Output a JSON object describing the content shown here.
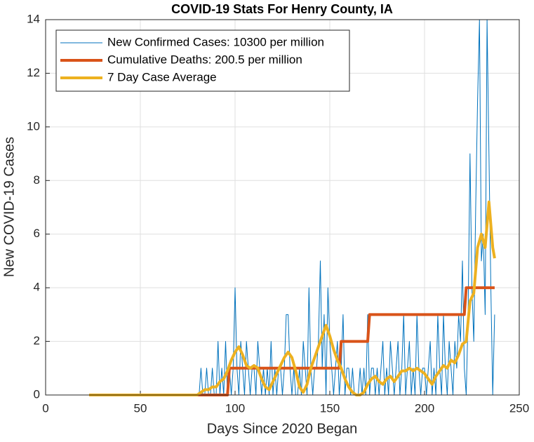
{
  "chart_data": {
    "type": "line",
    "title": "COVID-19 Stats For Henry County, IA",
    "x_label": "Days Since 2020 Began",
    "y_label": "New COVID-19 Cases",
    "xlim": [
      0,
      250
    ],
    "xticks": [
      0,
      50,
      100,
      150,
      200,
      250
    ],
    "ylim": [
      0,
      14
    ],
    "yticks": [
      0,
      2,
      4,
      6,
      8,
      10,
      12,
      14
    ],
    "grid": true,
    "legend": "upper-left",
    "series": [
      {
        "name": "New Confirmed Cases: 10300 per million",
        "color": "#0072bd",
        "width": 1,
        "x": [
          23,
          80,
          81,
          82,
          83,
          84,
          85,
          86,
          87,
          88,
          89,
          90,
          91,
          92,
          93,
          94,
          95,
          96,
          97,
          98,
          99,
          100,
          101,
          102,
          103,
          104,
          105,
          106,
          107,
          108,
          109,
          110,
          111,
          112,
          113,
          114,
          115,
          116,
          117,
          118,
          119,
          120,
          121,
          122,
          123,
          124,
          125,
          126,
          127,
          128,
          129,
          130,
          131,
          132,
          133,
          134,
          135,
          136,
          137,
          138,
          139,
          140,
          141,
          142,
          143,
          144,
          145,
          146,
          147,
          148,
          149,
          150,
          151,
          152,
          153,
          154,
          155,
          156,
          157,
          158,
          159,
          160,
          161,
          162,
          163,
          164,
          165,
          166,
          167,
          168,
          169,
          170,
          171,
          172,
          173,
          174,
          175,
          176,
          177,
          178,
          179,
          180,
          181,
          182,
          183,
          184,
          185,
          186,
          187,
          188,
          189,
          190,
          191,
          192,
          193,
          194,
          195,
          196,
          197,
          198,
          199,
          200,
          201,
          202,
          203,
          204,
          205,
          206,
          207,
          208,
          209,
          210,
          211,
          212,
          213,
          214,
          215,
          216,
          217,
          218,
          219,
          220,
          221,
          222,
          223,
          224,
          225,
          226,
          227,
          228,
          229,
          230,
          231,
          232,
          233,
          234,
          235,
          236,
          237
        ],
        "values": [
          0,
          0,
          0,
          1,
          0,
          0,
          1,
          0,
          0,
          1,
          0,
          0,
          2,
          0,
          1,
          0,
          2,
          0,
          1,
          0,
          1,
          4,
          1,
          0,
          2,
          1,
          0,
          2,
          1,
          0,
          1,
          1,
          0,
          2,
          1,
          0,
          1,
          0,
          1,
          0,
          2,
          0,
          1,
          0,
          1,
          1,
          0,
          1,
          3,
          3,
          1,
          0,
          1,
          0,
          0,
          1,
          0,
          2,
          1,
          0,
          4,
          1,
          0,
          1,
          1,
          2,
          5,
          1,
          3,
          0,
          4,
          2,
          1,
          0,
          1,
          2,
          0,
          1,
          3,
          0,
          1,
          1,
          0,
          1,
          0,
          0,
          0,
          1,
          0,
          1,
          0,
          3,
          0,
          1,
          1,
          0,
          1,
          0,
          1,
          2,
          0,
          1,
          0,
          2,
          1,
          0,
          1,
          2,
          0,
          1,
          3,
          0,
          1,
          2,
          0,
          1,
          0,
          3,
          1,
          0,
          1,
          1,
          0,
          1,
          2,
          0,
          1,
          0,
          3,
          1,
          0,
          3,
          1,
          0,
          2,
          1,
          0,
          2,
          1,
          3,
          2,
          5,
          1,
          0,
          3,
          9,
          4,
          2,
          7,
          11,
          14,
          5,
          6,
          3,
          14,
          9,
          4,
          0,
          3
        ]
      },
      {
        "name": "Cumulative Deaths: 200.5 per million",
        "color": "#d95319",
        "width": 4,
        "x": [
          23,
          96,
          97,
          155,
          156,
          170,
          171,
          221,
          222,
          237
        ],
        "values": [
          0,
          0,
          1,
          1,
          2,
          2,
          3,
          3,
          4,
          4
        ]
      },
      {
        "name": "7 Day Case Average",
        "color": "#edb120",
        "width": 4,
        "x": [
          23,
          80,
          82,
          84,
          86,
          88,
          90,
          92,
          94,
          96,
          98,
          100,
          102,
          104,
          106,
          108,
          110,
          112,
          114,
          116,
          118,
          120,
          122,
          124,
          126,
          128,
          130,
          132,
          134,
          136,
          138,
          140,
          142,
          144,
          146,
          148,
          150,
          152,
          154,
          156,
          158,
          160,
          162,
          164,
          166,
          168,
          170,
          172,
          174,
          176,
          178,
          180,
          182,
          184,
          186,
          188,
          190,
          192,
          194,
          196,
          198,
          200,
          202,
          204,
          206,
          208,
          210,
          212,
          214,
          216,
          218,
          220,
          222,
          224,
          226,
          228,
          230,
          232,
          234,
          236,
          237
        ],
        "values": [
          0,
          0,
          0.1,
          0.2,
          0.2,
          0.3,
          0.3,
          0.5,
          0.6,
          0.9,
          1.3,
          1.6,
          1.8,
          1.5,
          1.1,
          1.0,
          1.1,
          1.0,
          0.6,
          0.3,
          0.2,
          0.5,
          0.8,
          1.1,
          1.4,
          1.6,
          1.4,
          0.9,
          0.3,
          0.1,
          0.4,
          1.0,
          1.4,
          1.8,
          2.2,
          2.6,
          2.2,
          1.7,
          1.3,
          1.0,
          0.6,
          0.3,
          0.1,
          0,
          0,
          0.1,
          0.4,
          0.6,
          0.7,
          0.5,
          0.4,
          0.6,
          0.7,
          0.5,
          0.7,
          0.9,
          0.9,
          1.0,
          0.9,
          1.0,
          0.9,
          0.8,
          0.6,
          0.4,
          0.7,
          0.9,
          1.1,
          1.0,
          1.3,
          1.2,
          1.5,
          1.9,
          2.0,
          3.5,
          3.8,
          5.5,
          6.0,
          5.5,
          7.2,
          5.5,
          5.1
        ]
      }
    ]
  }
}
